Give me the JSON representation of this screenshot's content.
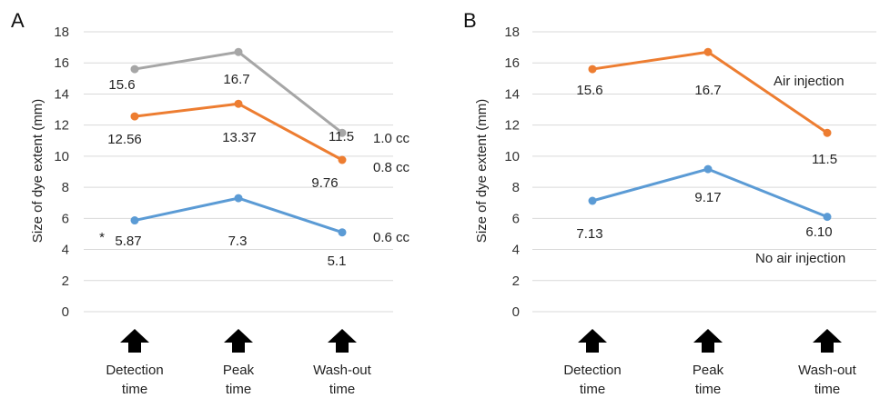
{
  "chart_data": [
    {
      "panel_label": "A",
      "type": "line",
      "ylabel": "Size of dye extent (mm)",
      "ylim": [
        0,
        18
      ],
      "yticks": [
        "0",
        "2",
        "4",
        "6",
        "8",
        "10",
        "12",
        "14",
        "16",
        "18"
      ],
      "grid": true,
      "categories": [
        {
          "line1": "Detection",
          "line2": "time"
        },
        {
          "line1": "Peak",
          "line2": "time"
        },
        {
          "line1": "Wash-out",
          "line2": "time"
        }
      ],
      "series": [
        {
          "name": "1.0 cc",
          "color": "#a6a6a6",
          "values": [
            15.6,
            16.7,
            11.5
          ],
          "labels": [
            "15.6",
            "16.7",
            "11.5"
          ]
        },
        {
          "name": "0.8 cc",
          "color": "#ed7d31",
          "values": [
            12.56,
            13.37,
            9.76
          ],
          "labels": [
            "12.56",
            "13.37",
            "9.76"
          ]
        },
        {
          "name": "0.6 cc",
          "color": "#5b9bd5",
          "values": [
            5.87,
            7.3,
            5.1
          ],
          "labels": [
            "5.87",
            "7.3",
            "5.1"
          ]
        }
      ],
      "annotation": "*"
    },
    {
      "panel_label": "B",
      "type": "line",
      "ylabel": "Size of dye extent (mm)",
      "ylim": [
        0,
        18
      ],
      "yticks": [
        "0",
        "2",
        "4",
        "6",
        "8",
        "10",
        "12",
        "14",
        "16",
        "18"
      ],
      "grid": true,
      "categories": [
        {
          "line1": "Detection",
          "line2": "time"
        },
        {
          "line1": "Peak",
          "line2": "time"
        },
        {
          "line1": "Wash-out",
          "line2": "time"
        }
      ],
      "series": [
        {
          "name": "Air injection",
          "color": "#ed7d31",
          "values": [
            15.6,
            16.7,
            11.5
          ],
          "labels": [
            "15.6",
            "16.7",
            "11.5"
          ]
        },
        {
          "name": "No air injection",
          "color": "#5b9bd5",
          "values": [
            7.13,
            9.17,
            6.1
          ],
          "labels": [
            "7.13",
            "9.17",
            "6.10"
          ]
        }
      ]
    }
  ]
}
